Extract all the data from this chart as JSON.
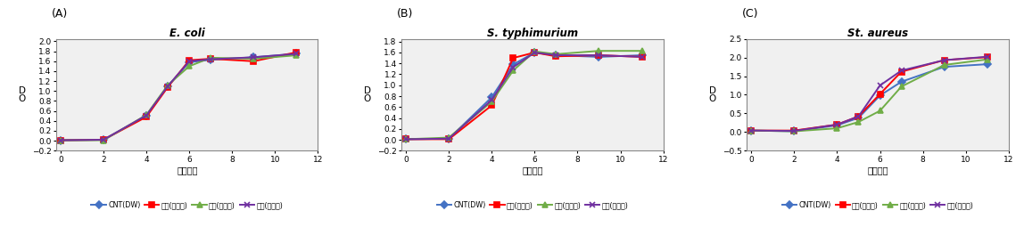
{
  "panel_labels": [
    "(A)",
    "(B)",
    "(C)"
  ],
  "titles": [
    "E. coli",
    "S. typhimurium",
    "St. aureus"
  ],
  "xlabel": "반응시간",
  "legend_labels": [
    "CNT(DW)",
    "당근(무처리)",
    "당근(더치기)",
    "당근(초고압)"
  ],
  "colors": [
    "#4472C4",
    "#FF0000",
    "#70AD47",
    "#7030A0"
  ],
  "markers": [
    "D",
    "s",
    "^",
    "x"
  ],
  "x": [
    0,
    2,
    4,
    5,
    6,
    7,
    9,
    11
  ],
  "A_data": [
    [
      0.01,
      0.02,
      0.5,
      1.1,
      1.58,
      1.63,
      1.68,
      1.75
    ],
    [
      0.01,
      0.02,
      0.48,
      1.08,
      1.62,
      1.65,
      1.6,
      1.78
    ],
    [
      0.01,
      0.01,
      0.52,
      1.12,
      1.5,
      1.67,
      1.65,
      1.72
    ],
    [
      0.01,
      0.02,
      0.51,
      1.1,
      1.6,
      1.64,
      1.68,
      1.75
    ]
  ],
  "B_data": [
    [
      0.01,
      0.02,
      0.78,
      1.38,
      1.6,
      1.55,
      1.52,
      1.55
    ],
    [
      0.01,
      0.01,
      0.63,
      1.5,
      1.6,
      1.53,
      1.55,
      1.52
    ],
    [
      0.01,
      0.04,
      0.7,
      1.27,
      1.62,
      1.57,
      1.63,
      1.63
    ],
    [
      0.01,
      0.02,
      0.73,
      1.33,
      1.6,
      1.55,
      1.55,
      1.52
    ]
  ],
  "C_data": [
    [
      0.04,
      0.02,
      0.18,
      0.38,
      0.98,
      1.35,
      1.75,
      1.82
    ],
    [
      0.04,
      0.04,
      0.2,
      0.42,
      1.02,
      1.62,
      1.93,
      2.01
    ],
    [
      0.04,
      0.02,
      0.1,
      0.27,
      0.57,
      1.22,
      1.8,
      1.95
    ],
    [
      0.04,
      0.03,
      0.2,
      0.42,
      1.25,
      1.65,
      1.93,
      2.02
    ]
  ],
  "A_ylim": [
    -0.2,
    2.05
  ],
  "B_ylim": [
    -0.2,
    1.85
  ],
  "C_ylim": [
    -0.5,
    2.5
  ],
  "A_yticks": [
    -0.2,
    0,
    0.2,
    0.4,
    0.6,
    0.8,
    1.0,
    1.2,
    1.4,
    1.6,
    1.8,
    2.0
  ],
  "B_yticks": [
    -0.2,
    0,
    0.2,
    0.4,
    0.6,
    0.8,
    1.0,
    1.2,
    1.4,
    1.6,
    1.8
  ],
  "C_yticks": [
    -0.5,
    0,
    0.5,
    1.0,
    1.5,
    2.0,
    2.5
  ],
  "xlim": [
    -0.2,
    12
  ],
  "xticks": [
    0,
    2,
    4,
    6,
    8,
    10,
    12
  ]
}
